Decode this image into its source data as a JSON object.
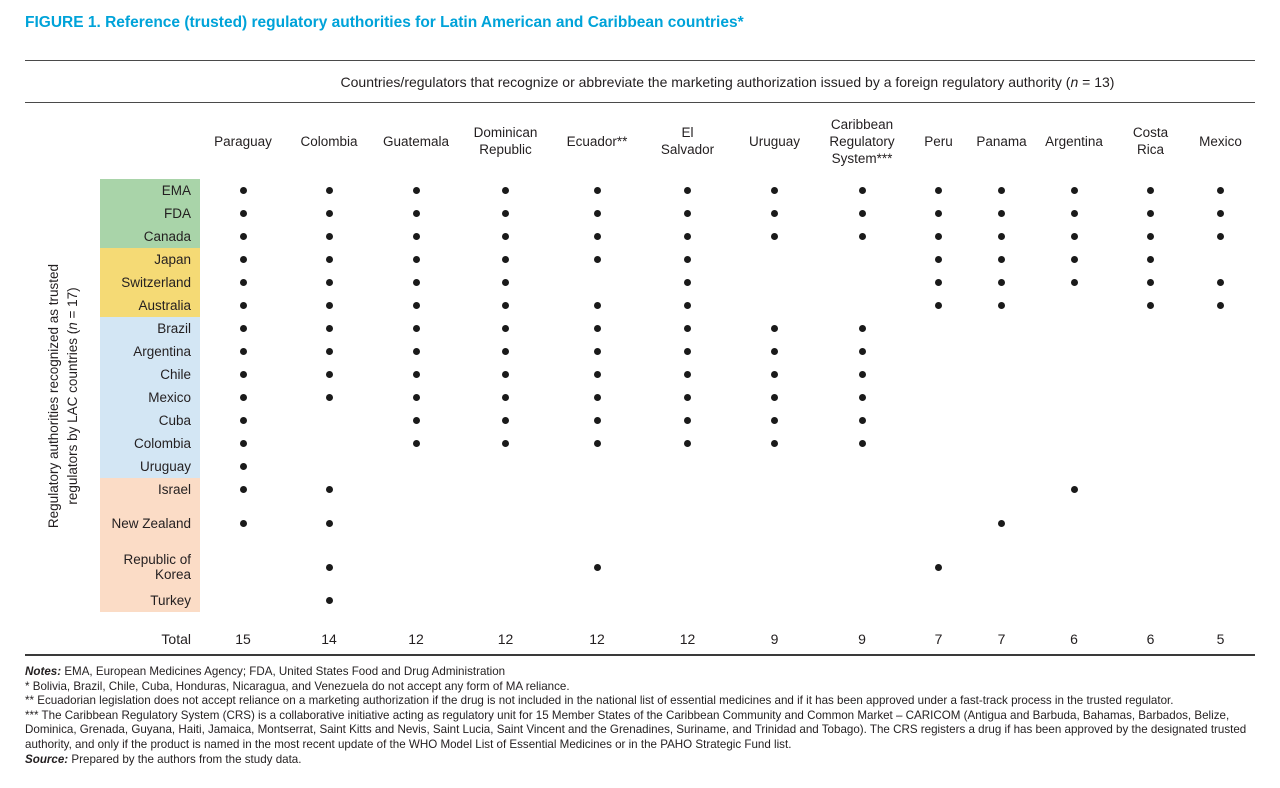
{
  "figure": {
    "title": "FIGURE 1. Reference (trusted) regulatory authorities for Latin American and Caribbean countries*"
  },
  "span_header": {
    "prefix": "Countries/regulators that recognize or abbreviate the marketing authorization issued by a foreign regulatory authority (",
    "n": "n",
    "suffix": " = 13)"
  },
  "row_axis_label": {
    "line1": "Regulatory authorities recognized as trusted",
    "line2_prefix": "regulators by LAC countries (",
    "n": "n",
    "line2_suffix": " = 17)"
  },
  "chart_data": {
    "type": "heatmap",
    "subtype": "dot-matrix",
    "title": "FIGURE 1. Reference (trusted) regulatory authorities for Latin American and Caribbean countries*",
    "column_axis_title": "Countries/regulators that recognize or abbreviate the marketing authorization issued by a foreign regulatory authority (n = 13)",
    "row_axis_title": "Regulatory authorities recognized as trusted regulators by LAC countries (n = 17)",
    "columns": [
      "Paraguay",
      "Colombia",
      "Guatemala",
      "Dominican Republic",
      "Ecuador**",
      "El Salvador",
      "Uruguay",
      "Caribbean Regulatory System***",
      "Peru",
      "Panama",
      "Argentina",
      "Costa Rica",
      "Mexico"
    ],
    "rows": [
      "EMA",
      "FDA",
      "Canada",
      "Japan",
      "Switzerland",
      "Australia",
      "Brazil",
      "Argentina",
      "Chile",
      "Mexico",
      "Cuba",
      "Colombia",
      "Uruguay",
      "Israel",
      "New Zealand",
      "Republic of Korea",
      "Turkey"
    ],
    "row_groups": [
      {
        "rows": [
          "EMA",
          "FDA",
          "Canada"
        ],
        "color": "#a9d4a9"
      },
      {
        "rows": [
          "Japan",
          "Switzerland",
          "Australia"
        ],
        "color": "#f5da75"
      },
      {
        "rows": [
          "Brazil",
          "Argentina",
          "Chile",
          "Mexico",
          "Cuba",
          "Colombia",
          "Uruguay"
        ],
        "color": "#d3e6f4"
      },
      {
        "rows": [
          "Israel",
          "New Zealand",
          "Republic of Korea",
          "Turkey"
        ],
        "color": "#fbdcc6"
      }
    ],
    "matrix": [
      [
        1,
        1,
        1,
        1,
        1,
        1,
        1,
        1,
        1,
        1,
        1,
        1,
        1
      ],
      [
        1,
        1,
        1,
        1,
        1,
        1,
        1,
        1,
        1,
        1,
        1,
        1,
        1
      ],
      [
        1,
        1,
        1,
        1,
        1,
        1,
        1,
        1,
        1,
        1,
        1,
        1,
        1
      ],
      [
        1,
        1,
        1,
        1,
        1,
        1,
        0,
        0,
        1,
        1,
        1,
        1,
        0
      ],
      [
        1,
        1,
        1,
        1,
        0,
        1,
        0,
        0,
        1,
        1,
        1,
        1,
        1
      ],
      [
        1,
        1,
        1,
        1,
        1,
        1,
        0,
        0,
        1,
        1,
        0,
        1,
        1
      ],
      [
        1,
        1,
        1,
        1,
        1,
        1,
        1,
        1,
        0,
        0,
        0,
        0,
        0
      ],
      [
        1,
        1,
        1,
        1,
        1,
        1,
        1,
        1,
        0,
        0,
        0,
        0,
        0
      ],
      [
        1,
        1,
        1,
        1,
        1,
        1,
        1,
        1,
        0,
        0,
        0,
        0,
        0
      ],
      [
        1,
        1,
        1,
        1,
        1,
        1,
        1,
        1,
        0,
        0,
        0,
        0,
        0
      ],
      [
        1,
        0,
        1,
        1,
        1,
        1,
        1,
        1,
        0,
        0,
        0,
        0,
        0
      ],
      [
        1,
        0,
        1,
        1,
        1,
        1,
        1,
        1,
        0,
        0,
        0,
        0,
        0
      ],
      [
        1,
        0,
        0,
        0,
        0,
        0,
        0,
        0,
        0,
        0,
        0,
        0,
        0
      ],
      [
        1,
        1,
        0,
        0,
        0,
        0,
        0,
        0,
        0,
        0,
        1,
        0,
        0
      ],
      [
        1,
        1,
        0,
        0,
        0,
        0,
        0,
        0,
        0,
        1,
        0,
        0,
        0
      ],
      [
        0,
        1,
        0,
        0,
        1,
        0,
        0,
        0,
        1,
        0,
        0,
        0,
        0
      ],
      [
        0,
        1,
        0,
        0,
        0,
        0,
        0,
        0,
        0,
        0,
        0,
        0,
        0
      ]
    ],
    "total_label": "Total",
    "totals": [
      15,
      14,
      12,
      12,
      12,
      12,
      9,
      9,
      7,
      7,
      6,
      6,
      5
    ],
    "legend_position": "none",
    "grid": false
  },
  "notes": {
    "notes_label": "Notes:",
    "notes_text": "EMA, European Medicines Agency; FDA, United States Food and Drug Administration",
    "footnote_1": "* Bolivia, Brazil, Chile, Cuba, Honduras, Nicaragua, and Venezuela do not accept any form of MA reliance.",
    "footnote_2": "** Ecuadorian legislation does not accept reliance on a marketing authorization if the drug is not included in the national list of essential medicines and if it has been approved under a fast-track process in the trusted regulator.",
    "footnote_3": "*** The Caribbean Regulatory System (CRS) is a collaborative initiative acting as regulatory unit for 15 Member States of the Caribbean Community and Common Market – CARICOM (Antigua and Barbuda, Bahamas, Barbados, Belize, Dominica, Grenada, Guyana, Haiti, Jamaica, Montserrat, Saint Kitts and Nevis, Saint Lucia, Saint Vincent and the Grenadines, Suriname, and Trinidad and Tobago). The CRS registers a drug if has been approved by the designated trusted authority, and only if the product is named in the most recent update of the WHO Model List of Essential Medicines or in the PAHO Strategic Fund list.",
    "source_label": "Source:",
    "source_text": "Prepared by the authors from the study data."
  },
  "colors": {
    "title_accent": "#00a3d9",
    "dot": "#1a1a1a",
    "group_stringent_green": "#a9d4a9",
    "group_yellow": "#f5da75",
    "group_lac_blue": "#d3e6f4",
    "group_other_peach": "#fbdcc6"
  }
}
